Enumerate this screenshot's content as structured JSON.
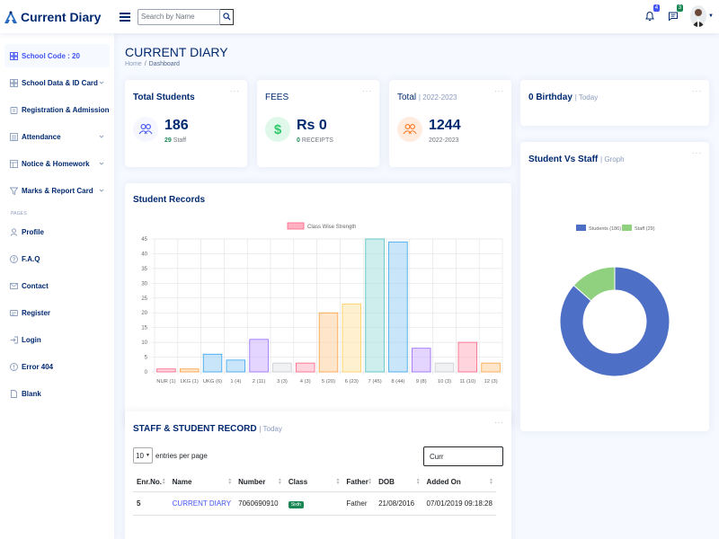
{
  "header": {
    "logo_text": "Current Diary",
    "search_placeholder": "Search by Name",
    "notif_count": "4",
    "msg_count": "3"
  },
  "sidebar": {
    "items": [
      {
        "label": "School Code : 20",
        "icon": "grid-icon",
        "active": true,
        "chevron": false
      },
      {
        "label": "School Data & ID Card",
        "icon": "grid-icon",
        "chevron": true
      },
      {
        "label": "Registration & Admission",
        "icon": "clipboard-icon",
        "chevron": true
      },
      {
        "label": "Attendance",
        "icon": "list-icon",
        "chevron": true
      },
      {
        "label": "Notice & Homework",
        "icon": "layout-icon",
        "chevron": true
      },
      {
        "label": "Marks & Report Card",
        "icon": "funnel-icon",
        "chevron": true
      }
    ],
    "pages_heading": "PAGES",
    "pages": [
      {
        "label": "Profile",
        "icon": "person-icon"
      },
      {
        "label": "F.A.Q",
        "icon": "question-icon"
      },
      {
        "label": "Contact",
        "icon": "envelope-icon"
      },
      {
        "label": "Register",
        "icon": "card-icon"
      },
      {
        "label": "Login",
        "icon": "login-icon"
      },
      {
        "label": "Error 404",
        "icon": "alert-icon"
      },
      {
        "label": "Blank",
        "icon": "file-icon"
      }
    ]
  },
  "page": {
    "title": "CURRENT DIARY",
    "breadcrumb_home": "Home",
    "breadcrumb_sep": "/",
    "breadcrumb_current": "Dashboard"
  },
  "cards": {
    "students": {
      "title": "Total Students",
      "value": "186",
      "sub_value": "29",
      "sub_label": "Staff"
    },
    "fees": {
      "title": "FEES",
      "value": "Rs 0",
      "sub_value": "0",
      "sub_label": "RECEIPTS"
    },
    "total": {
      "title": "Total",
      "title_sub": "| 2022-2023",
      "value": "1244",
      "sub_label": "2022-2023"
    },
    "birthday": {
      "title": "0 Birthday",
      "title_sub": "| Today"
    },
    "records": {
      "title": "Student Records"
    },
    "svs": {
      "title": "Student Vs Staff",
      "title_sub": "| Groph"
    },
    "table": {
      "title": "STAFF & STUDENT RECORD",
      "title_sub": "| Today"
    },
    "dots": "···"
  },
  "chart_data": [
    {
      "type": "bar",
      "title": "Student Records",
      "legend": [
        "Class Wise Strength"
      ],
      "legend_position": "top",
      "categories": [
        "NUR (1)",
        "LKG (1)",
        "UKG (6)",
        "1 (4)",
        "2 (11)",
        "3 (3)",
        "4 (3)",
        "5 (20)",
        "6 (23)",
        "7 (45)",
        "8 (44)",
        "9 (8)",
        "10 (3)",
        "11 (10)",
        "12 (3)"
      ],
      "series": [
        {
          "name": "Class Wise Strength",
          "values": [
            1,
            1,
            6,
            4,
            11,
            3,
            3,
            20,
            23,
            45,
            44,
            8,
            3,
            10,
            3
          ]
        }
      ],
      "yticks": [
        "0",
        "5",
        "10",
        "15",
        "20",
        "25",
        "30",
        "35",
        "40",
        "45"
      ],
      "ylim": [
        0,
        45
      ],
      "grid": true,
      "bar_colors": [
        "#ffb1c1",
        "#ffcf9f",
        "#9ad0f5",
        "#9ad0f5",
        "#ccb2ff",
        "#e4e5e7",
        "#ffb1c1",
        "#ffcf9f",
        "#ffe6aa",
        "#a5dfdf",
        "#9ad0f5",
        "#ccb2ff",
        "#e4e5e7",
        "#ffb1c1",
        "#ffcf9f"
      ],
      "border_colors": [
        "#ff6384",
        "#ff9f40",
        "#36a2eb",
        "#36a2eb",
        "#9966ff",
        "#c9cbcf",
        "#ff6384",
        "#ff9f40",
        "#ffcd56",
        "#4bc0c0",
        "#36a2eb",
        "#9966ff",
        "#c9cbcf",
        "#ff6384",
        "#ff9f40"
      ]
    },
    {
      "type": "pie",
      "title": "Student Vs Staff",
      "legend": [
        "Students (186)",
        "Staff (29)"
      ],
      "legend_position": "top",
      "values": [
        186,
        29
      ],
      "colors": [
        "#4e6fc6",
        "#8fd17f"
      ]
    }
  ],
  "table": {
    "length_value": "10",
    "length_label": "entries per page",
    "search_value": "Curr",
    "headers": [
      "Enr.No.",
      "Name",
      "Number",
      "Class",
      "Father",
      "DOB",
      "Added On"
    ],
    "rows": [
      {
        "enr": "5",
        "name": "CURRENT DIARY",
        "number": "7060690910",
        "class": "Sixth",
        "father": "Father",
        "dob": "21/08/2016",
        "added": "07/01/2019 09:18:28"
      }
    ]
  },
  "colors": {
    "primary": "#012970",
    "accent": "#4154f1",
    "success": "#198754"
  }
}
